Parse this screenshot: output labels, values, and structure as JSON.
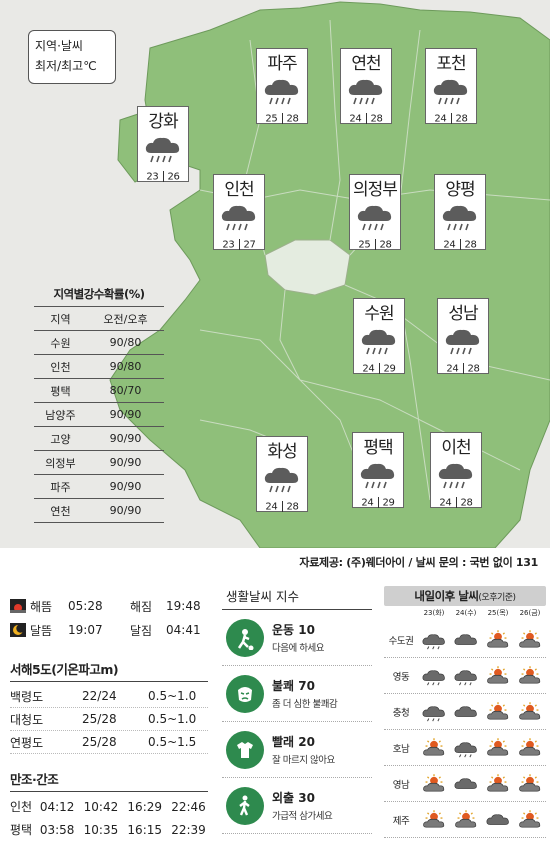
{
  "legend": {
    "line1": "지역·날씨",
    "line2": "최저/최고℃"
  },
  "cities": [
    {
      "name": "파주",
      "icon": "rain-cloud-icon",
      "min": "25",
      "max": "28"
    },
    {
      "name": "연천",
      "icon": "rain-cloud-icon",
      "min": "24",
      "max": "28"
    },
    {
      "name": "포천",
      "icon": "rain-cloud-icon",
      "min": "24",
      "max": "28"
    },
    {
      "name": "강화",
      "icon": "rain-cloud-icon",
      "min": "23",
      "max": "26"
    },
    {
      "name": "인천",
      "icon": "rain-cloud-icon",
      "min": "23",
      "max": "27"
    },
    {
      "name": "의정부",
      "icon": "rain-cloud-icon",
      "min": "25",
      "max": "28"
    },
    {
      "name": "양평",
      "icon": "rain-cloud-icon",
      "min": "24",
      "max": "28"
    },
    {
      "name": "수원",
      "icon": "rain-cloud-icon",
      "min": "24",
      "max": "29"
    },
    {
      "name": "성남",
      "icon": "rain-cloud-icon",
      "min": "24",
      "max": "28"
    },
    {
      "name": "화성",
      "icon": "rain-cloud-icon",
      "min": "24",
      "max": "28"
    },
    {
      "name": "평택",
      "icon": "rain-cloud-icon",
      "min": "24",
      "max": "29"
    },
    {
      "name": "이천",
      "icon": "rain-cloud-icon",
      "min": "24",
      "max": "28"
    }
  ],
  "precip": {
    "title": "지역별강수확률(%)",
    "headers": [
      "지역",
      "오전/오후"
    ],
    "rows": [
      [
        "수원",
        "90/80"
      ],
      [
        "인천",
        "90/80"
      ],
      [
        "평택",
        "80/70"
      ],
      [
        "남양주",
        "90/90"
      ],
      [
        "고양",
        "90/90"
      ],
      [
        "의정부",
        "90/90"
      ],
      [
        "파주",
        "90/90"
      ],
      [
        "연천",
        "90/90"
      ]
    ]
  },
  "source": "자료제공: (주)웨더아이 / 날씨 문의 : 국번 없이 131",
  "sun": {
    "rise_label": "해뜸",
    "rise": "05:28",
    "set_label": "해짐",
    "set": "19:48"
  },
  "moon": {
    "rise_label": "달뜸",
    "rise": "19:07",
    "set_label": "달짐",
    "set": "04:41"
  },
  "wave": {
    "title": "서해5도(기온파고m)",
    "rows": [
      [
        "백령도",
        "22/24",
        "0.5~1.0"
      ],
      [
        "대청도",
        "25/28",
        "0.5~1.0"
      ],
      [
        "연평도",
        "25/28",
        "0.5~1.5"
      ]
    ]
  },
  "tide": {
    "title": "만조·간조",
    "rows": [
      [
        "인천",
        "04:12",
        "10:42",
        "16:29",
        "22:46"
      ],
      [
        "평택",
        "03:58",
        "10:35",
        "16:15",
        "22:39"
      ]
    ]
  },
  "life": {
    "title": "생활날씨 지수",
    "items": [
      {
        "name": "운동 10",
        "desc": "다음에 하세요",
        "icon": "soccer-player-icon"
      },
      {
        "name": "불쾌 70",
        "desc": "좀 더 심한 불쾌감",
        "icon": "angry-face-icon"
      },
      {
        "name": "빨래 20",
        "desc": "잘 마르지 않아요",
        "icon": "shirt-icon"
      },
      {
        "name": "외출 30",
        "desc": "가급적 삼가세요",
        "icon": "walking-person-icon"
      }
    ]
  },
  "forecast": {
    "title": "내일이후 날씨",
    "title_note": "(오후기준)",
    "days": [
      "23(화)",
      "24(수)",
      "25(목)",
      "26(금)"
    ],
    "rows": [
      {
        "region": "수도권",
        "icons": [
          "rain",
          "cloud",
          "sun-cloud",
          "sun-cloud"
        ]
      },
      {
        "region": "영동",
        "icons": [
          "rain",
          "rain",
          "sun-cloud",
          "sun-cloud"
        ]
      },
      {
        "region": "충청",
        "icons": [
          "rain",
          "cloud",
          "sun-cloud",
          "sun-cloud"
        ]
      },
      {
        "region": "호남",
        "icons": [
          "sun-cloud",
          "rain",
          "sun-cloud",
          "sun-cloud"
        ]
      },
      {
        "region": "영남",
        "icons": [
          "sun-cloud",
          "cloud",
          "sun-cloud",
          "sun-cloud"
        ]
      },
      {
        "region": "제주",
        "icons": [
          "sun-cloud",
          "sun-cloud",
          "cloud",
          "sun-cloud"
        ]
      }
    ]
  },
  "colors": {
    "land": "#8fbf7a",
    "sea": "#e9e9e6",
    "seoul": "#e4ece0",
    "index_green": "#2e8a4e",
    "header_grey": "#cfcfcf"
  }
}
